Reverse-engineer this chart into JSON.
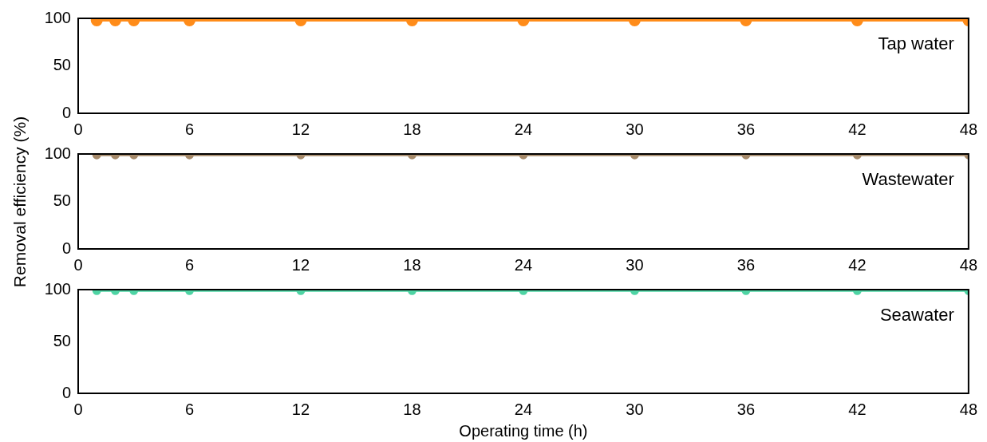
{
  "chart_data": [
    {
      "type": "line",
      "x": [
        1,
        2,
        3,
        6,
        12,
        18,
        24,
        30,
        36,
        42,
        48
      ],
      "series": [
        {
          "name": "Tap water",
          "color": "#ff8c1a",
          "values": [
            98,
            98,
            98,
            98,
            98,
            98,
            98,
            98,
            98,
            98,
            98
          ]
        }
      ],
      "xlim": [
        0,
        48
      ],
      "xticks": [
        0,
        6,
        12,
        18,
        24,
        30,
        36,
        42,
        48
      ],
      "ylim": [
        0,
        100
      ],
      "yticks": [
        0,
        50,
        100
      ],
      "marker": "circle",
      "grid": false,
      "legend": false
    },
    {
      "type": "line",
      "x": [
        1,
        2,
        3,
        6,
        12,
        18,
        24,
        30,
        36,
        42,
        48
      ],
      "series": [
        {
          "name": "Wastewater",
          "color": "#a68a6a",
          "values": [
            99,
            99,
            99,
            99,
            99,
            99,
            99,
            99,
            99,
            99,
            99
          ]
        }
      ],
      "xlim": [
        0,
        48
      ],
      "xticks": [
        0,
        6,
        12,
        18,
        24,
        30,
        36,
        42,
        48
      ],
      "ylim": [
        0,
        100
      ],
      "yticks": [
        0,
        50,
        100
      ],
      "ylabel": "Removal efficiency (%)",
      "marker": "circle",
      "grid": false,
      "legend": false
    },
    {
      "type": "line",
      "x": [
        1,
        2,
        3,
        6,
        12,
        18,
        24,
        30,
        36,
        42,
        48
      ],
      "series": [
        {
          "name": "Seawater",
          "color": "#4fd4a4",
          "values": [
            99,
            99,
            99,
            99,
            99,
            99,
            99,
            99,
            99,
            99,
            99
          ]
        }
      ],
      "xlim": [
        0,
        48
      ],
      "xticks": [
        0,
        6,
        12,
        18,
        24,
        30,
        36,
        42,
        48
      ],
      "ylim": [
        0,
        100
      ],
      "yticks": [
        0,
        50,
        100
      ],
      "xlabel": "Operating time (h)",
      "marker": "circle",
      "grid": false,
      "legend": false
    }
  ]
}
